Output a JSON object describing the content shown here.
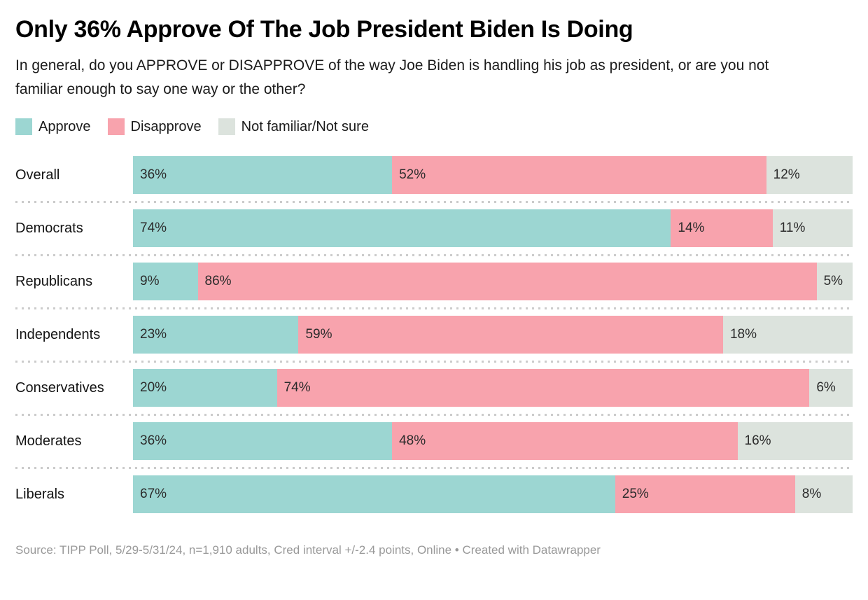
{
  "header": {
    "title": "Only 36% Approve Of The Job President Biden Is Doing",
    "subtitle": "In general, do you APPROVE or DISAPPROVE of the way Joe Biden is handling his job as president, or are you not familiar enough to say one way or the other?"
  },
  "footer": {
    "text": "Source: TIPP Poll, 5/29-5/31/24, n=1,910 adults, Cred interval +/-2.4 points, Online • Created with Datawrapper"
  },
  "colors": {
    "approve": "#9cd6d2",
    "disapprove": "#f8a3ad",
    "not_familiar": "#dce3dd",
    "separator": "#cccccc",
    "value_label": "#2b2b2b"
  },
  "chart_data": {
    "type": "bar",
    "orientation": "horizontal",
    "stacked": true,
    "unit": "%",
    "title": "Only 36% Approve Of The Job President Biden Is Doing",
    "subtitle": "In general, do you APPROVE or DISAPPROVE of the way Joe Biden is handling his job as president, or are you not familiar enough to say one way or the other?",
    "legend_position": "top",
    "value_labels": "inside-left",
    "grid": false,
    "xlim": [
      0,
      100
    ],
    "categories": [
      "Overall",
      "Democrats",
      "Republicans",
      "Independents",
      "Conservatives",
      "Moderates",
      "Liberals"
    ],
    "series": [
      {
        "name": "Approve",
        "color": "#9cd6d2",
        "values": [
          36,
          74,
          9,
          23,
          20,
          36,
          67
        ]
      },
      {
        "name": "Disapprove",
        "color": "#f8a3ad",
        "values": [
          52,
          14,
          86,
          59,
          74,
          48,
          25
        ]
      },
      {
        "name": "Not familiar/Not sure",
        "color": "#dce3dd",
        "values": [
          12,
          11,
          5,
          18,
          6,
          16,
          8
        ]
      }
    ]
  }
}
